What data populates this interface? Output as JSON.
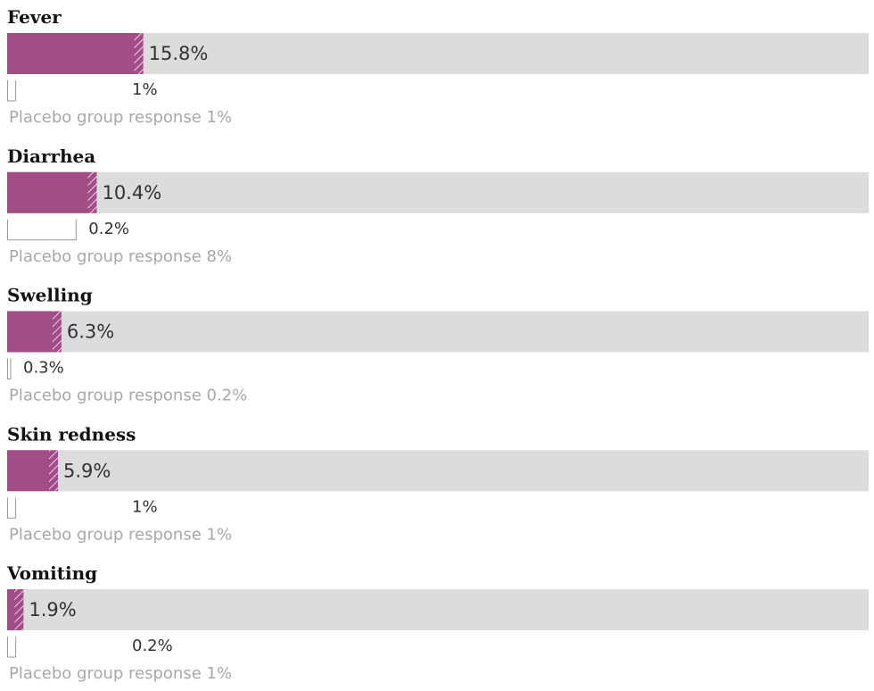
{
  "colors": {
    "main_bar": "#a24d86",
    "track": "#dcdcdc",
    "secondary_outline": "#999999",
    "hatch": "#ffffff"
  },
  "chart_data": {
    "type": "bar",
    "orientation": "horizontal",
    "xlim": [
      0,
      100
    ],
    "grid": false,
    "categories": [
      "Fever",
      "Diarrhea",
      "Swelling",
      "Skin redness",
      "Vomiting"
    ],
    "series": [
      {
        "values": [
          15.8,
          10.4,
          6.3,
          5.9,
          1.9
        ],
        "labels": [
          "15.8%",
          "10.4%",
          "6.3%",
          "5.9%",
          "1.9%"
        ]
      },
      {
        "values": [
          1,
          0.2,
          0.3,
          1,
          0.2
        ],
        "labels": [
          "1%",
          "0.2%",
          "0.3%",
          "1%",
          "0.2%"
        ]
      }
    ],
    "placebo_notes": [
      "Placebo group response 1%",
      "Placebo group response 8%",
      "Placebo group response 0.2%",
      "Placebo group response 1%",
      "Placebo group response 1%"
    ],
    "placebo_values": [
      1,
      8,
      0.2,
      1,
      1
    ]
  }
}
